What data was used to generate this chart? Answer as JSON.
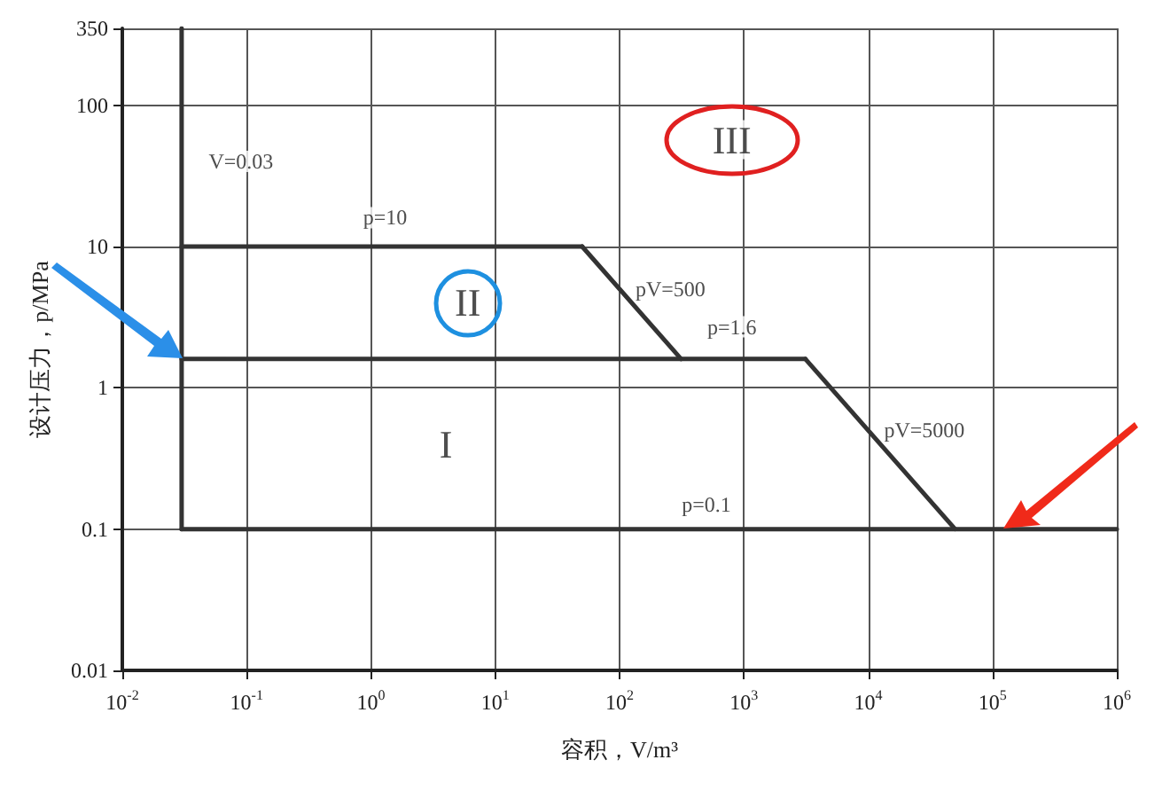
{
  "chart_data": {
    "type": "line",
    "xlabel": "容积，V/m³",
    "ylabel": "设计压力，p/MPa",
    "log": "xy",
    "grid": true,
    "marker": "none",
    "line_style": "solid",
    "xlim": [
      0.01,
      1000000
    ],
    "xticks": [
      {
        "value": 0.01,
        "label": "10$^{-2}$"
      },
      {
        "value": 0.1,
        "label": "10$^{-1}$"
      },
      {
        "value": 1,
        "label": "10$^{0}$"
      },
      {
        "value": 10,
        "label": "10$^{1}$"
      },
      {
        "value": 100,
        "label": "10$^{2}$"
      },
      {
        "value": 1000,
        "label": "10$^{3}$"
      },
      {
        "value": 10000,
        "label": "10$^{4}$"
      },
      {
        "value": 100000,
        "label": "10$^{5}$"
      },
      {
        "value": 1000000,
        "label": "10$^{6}$"
      }
    ],
    "ylim": [
      0.01,
      350
    ],
    "yticks": [
      0.01,
      0.1,
      1,
      10,
      100,
      350
    ],
    "series": [
      {
        "color": "#333333",
        "x": [
          0.03,
          0.03
        ],
        "values": [
          0.1,
          350
        ]
      },
      {
        "color": "#333333",
        "x": [
          0.03,
          50
        ],
        "values": [
          10,
          10
        ]
      },
      {
        "color": "#333333",
        "x": [
          50,
          312.5
        ],
        "values": [
          10,
          1.6
        ]
      },
      {
        "color": "#333333",
        "x": [
          0.03,
          3125
        ],
        "values": [
          1.6,
          1.6
        ]
      },
      {
        "color": "#333333",
        "x": [
          3125,
          50000
        ],
        "values": [
          1.6,
          0.1
        ]
      },
      {
        "color": "#333333",
        "x": [
          0.03,
          1000000
        ],
        "values": [
          0.1,
          0.1
        ]
      }
    ],
    "annotations": [
      {
        "text": "V=0.03",
        "x": 0.09,
        "y": 40
      },
      {
        "text": "p=10",
        "x": 1.3,
        "y": 16
      },
      {
        "text": "pV=500",
        "x": 100,
        "y": 5
      },
      {
        "text": "p=1.6",
        "x": 800,
        "y": 2.7
      },
      {
        "text": "pV=5000",
        "x": 10000,
        "y": 0.5
      },
      {
        "text": "p=0.1",
        "x": 500,
        "y": 0.15
      },
      {
        "text": "I",
        "x": 4,
        "y": 0.4
      },
      {
        "text": "II",
        "x": 6,
        "y": 4
      },
      {
        "text": "III",
        "x": 800,
        "y": 57
      }
    ]
  }
}
